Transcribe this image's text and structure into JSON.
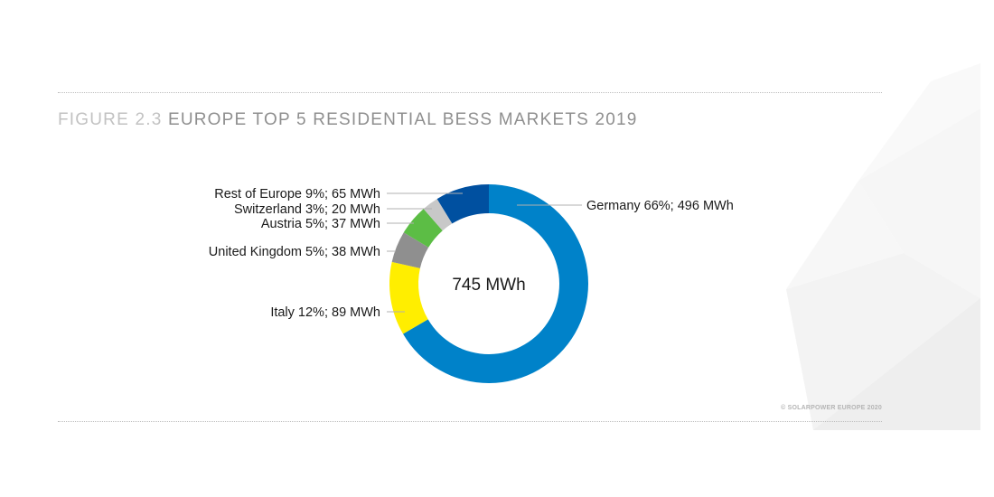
{
  "figure": {
    "number": "FIGURE 2.3",
    "title": "EUROPE TOP 5 RESIDENTIAL BESS MARKETS 2019"
  },
  "copyright": "© SOLARPOWER EUROPE 2020",
  "chart_data": {
    "type": "pie",
    "subtype": "donut",
    "title": "EUROPE TOP 5 RESIDENTIAL BESS MARKETS 2019",
    "center_label": "745 MWh",
    "total": 745,
    "unit": "MWh",
    "slices": [
      {
        "name": "Germany",
        "value": 496,
        "percent": 66,
        "color": "#0082c9",
        "label": "Germany 66%; 496 MWh"
      },
      {
        "name": "Italy",
        "value": 89,
        "percent": 12,
        "color": "#ffee00",
        "label": "Italy 12%; 89 MWh"
      },
      {
        "name": "United Kingdom",
        "value": 38,
        "percent": 5,
        "color": "#8f8f8f",
        "label": "United Kingdom 5%; 38 MWh"
      },
      {
        "name": "Austria",
        "value": 37,
        "percent": 5,
        "color": "#5cbd45",
        "label": "Austria 5%; 37 MWh"
      },
      {
        "name": "Switzerland",
        "value": 20,
        "percent": 3,
        "color": "#c8c8c8",
        "label": "Switzerland 3%; 20 MWh"
      },
      {
        "name": "Rest of Europe",
        "value": 65,
        "percent": 9,
        "color": "#0050a0",
        "label": "Rest of Europe 9%; 65 MWh"
      }
    ]
  }
}
